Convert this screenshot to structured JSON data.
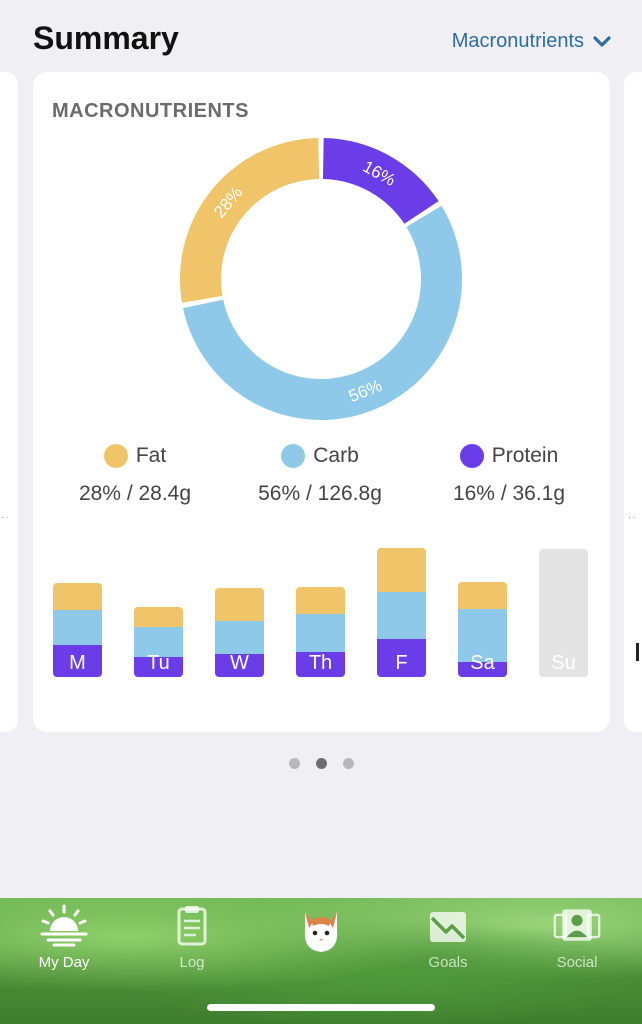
{
  "header": {
    "title": "Summary",
    "dropdown_label": "Macronutrients"
  },
  "card": {
    "title": "MACRONUTRIENTS"
  },
  "chart_data": [
    {
      "type": "pie",
      "variant": "donut",
      "labels": [
        "Protein",
        "Carb",
        "Fat"
      ],
      "values": [
        16,
        56,
        28
      ],
      "value_labels": [
        "16%",
        "56%",
        "28%"
      ],
      "colors": [
        "#6a3de8",
        "#8ec9ea",
        "#f0c468"
      ]
    },
    {
      "type": "bar",
      "stacked": true,
      "categories": [
        "M",
        "Tu",
        "W",
        "Th",
        "F",
        "Sa",
        "Su"
      ],
      "series": [
        {
          "name": "Protein",
          "color": "#6a3de8",
          "values": [
            32,
            20,
            23,
            25,
            38,
            15,
            0
          ]
        },
        {
          "name": "Carb",
          "color": "#8ec9ea",
          "values": [
            35,
            30,
            33,
            38,
            47,
            53,
            0
          ]
        },
        {
          "name": "Fat",
          "color": "#f0c468",
          "values": [
            27,
            20,
            33,
            27,
            44,
            27,
            0
          ]
        }
      ],
      "empty_color": "#e4e4e4",
      "ylim": [
        0,
        130
      ]
    }
  ],
  "legend": [
    {
      "name": "Fat",
      "color": "#f0c468",
      "value": "28% / 28.4g"
    },
    {
      "name": "Carb",
      "color": "#8ec9ea",
      "value": "56% / 126.8g"
    },
    {
      "name": "Protein",
      "color": "#6a3de8",
      "value": "16% / 36.1g"
    }
  ],
  "pager": {
    "count": 3,
    "active": 1
  },
  "tabs": [
    {
      "label": "My Day",
      "icon": "sunrise-icon",
      "active": true
    },
    {
      "label": "Log",
      "icon": "clipboard-icon",
      "active": false
    },
    {
      "label": "",
      "icon": "cat-mascot-icon",
      "active": false
    },
    {
      "label": "Goals",
      "icon": "chart-goals-icon",
      "active": false
    },
    {
      "label": "Social",
      "icon": "people-icon",
      "active": false
    }
  ],
  "colors": {
    "accent": "#2d6da3",
    "fat": "#f0c468",
    "carb": "#8ec9ea",
    "protein": "#6a3de8"
  }
}
